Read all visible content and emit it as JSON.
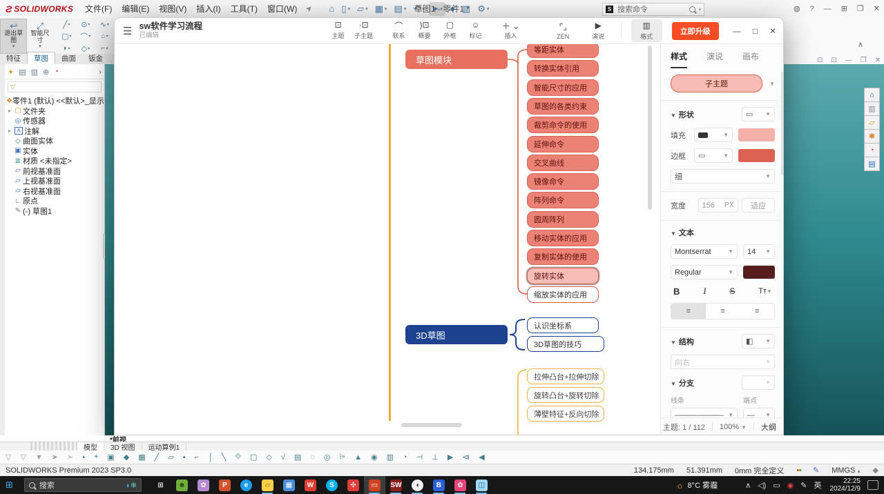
{
  "colors": {
    "parent_fill": "#E8705F",
    "child_fill": "#EC8175",
    "child_border": "#D86455",
    "child_text": "#5F150D",
    "selected_fill": "#F7BDB6",
    "outline_border": "#D85A48",
    "blue": "#1D4390",
    "yellow": "#EFB343",
    "trunk": "#F2A93B",
    "upgrade": "#F64E22",
    "maroon_swatch": "#571E1E",
    "fill_swatch": "#F5B1A9",
    "border_swatch": "#DA6351",
    "branch_swatch": "#E2674F",
    "preview_fill": "#F7BCB4"
  },
  "sw": {
    "logo_mark": "Ƨ",
    "logo_text": "SOLIDWORKS",
    "menus": [
      "文件(F)",
      "编辑(E)",
      "视图(V)",
      "插入(I)",
      "工具(T)",
      "窗口(W)"
    ],
    "pin_icon": "➤",
    "quick_icons": [
      {
        "name": "home-icon",
        "g": "⌂"
      },
      {
        "name": "new-doc-icon",
        "g": "▯",
        "chev": true
      },
      {
        "name": "open-icon",
        "g": "▱",
        "chev": true
      },
      {
        "name": "save-icon",
        "g": "▦",
        "chev": true
      },
      {
        "name": "print-icon",
        "g": "▤",
        "chev": true
      },
      {
        "name": "undo-icon",
        "g": "↶",
        "chev": true
      },
      {
        "name": "select-cursor-icon",
        "g": "➤",
        "chev": true,
        "active": true
      },
      {
        "name": "traffic-light-icon",
        "g": "●"
      },
      {
        "name": "table-icon",
        "g": "▥"
      },
      {
        "name": "settings-gear-icon",
        "g": "⚙",
        "chev": true
      }
    ],
    "doc_title": "草图1 - 零件1 *",
    "search_placeholder": "搜索命令",
    "right_icons": [
      {
        "name": "user-icon",
        "g": "◍"
      },
      {
        "name": "help-icon",
        "g": "?"
      },
      {
        "name": "minimize-icon",
        "g": "—"
      },
      {
        "name": "collapse-icon",
        "g": "⊞"
      },
      {
        "name": "restore-icon",
        "g": "❐"
      },
      {
        "name": "close-icon",
        "g": "✕"
      }
    ],
    "ribbon": {
      "exit_sketch": "退出草图",
      "smart_dim": "智能尺寸",
      "sketch_icons": [
        "╱",
        "⊙",
        "∿",
        "▢",
        "⌒",
        "○",
        "◗",
        "◇",
        "⌐"
      ],
      "tabs": [
        "特征",
        "草图",
        "曲面",
        "钣金"
      ],
      "active_tab": "草图"
    },
    "feature_tabs": [
      {
        "name": "featuremanager-tab-icon",
        "g": "✦",
        "c": "#c9a227"
      },
      {
        "name": "propertymanager-tab-icon",
        "g": "▤",
        "c": "#6f7f8c"
      },
      {
        "name": "configuration-tab-icon",
        "g": "▥",
        "c": "#6f7f8c"
      },
      {
        "name": "dimxpert-tab-icon",
        "g": "⊕",
        "c": "#6f7f8c"
      },
      {
        "name": "appearance-tab-icon",
        "g": "◔",
        "c": "#b5452f"
      }
    ],
    "tree": {
      "root": "零件1 (默认) <<默认>_显示状态 1>",
      "root_icon": "❖",
      "items": [
        {
          "icon": "folder-icon",
          "g": "▢",
          "c": "#c9a227",
          "exp": true,
          "label": "文件夹"
        },
        {
          "icon": "sensors-icon",
          "g": "◎",
          "c": "#3d6fb4",
          "exp": false,
          "label": "传感器"
        },
        {
          "icon": "annotations-icon",
          "g": "A",
          "c": "#3d6fb4",
          "exp": true,
          "label": "注解"
        },
        {
          "icon": "surface-bodies-icon",
          "g": "◇",
          "c": "#2f8b8f",
          "exp": false,
          "label": "曲面实体"
        },
        {
          "icon": "solid-bodies-icon",
          "g": "▣",
          "c": "#3d6fb4",
          "exp": false,
          "label": "实体"
        },
        {
          "icon": "material-icon",
          "g": "≣",
          "c": "#2f8b8f",
          "exp": false,
          "label": "材质 <未指定>"
        },
        {
          "icon": "plane-icon",
          "g": "▱",
          "c": "#3d6fb4",
          "exp": false,
          "label": "前视基准面"
        },
        {
          "icon": "plane-icon",
          "g": "▱",
          "c": "#3d6fb4",
          "exp": false,
          "label": "上视基准面"
        },
        {
          "icon": "plane-icon",
          "g": "▱",
          "c": "#3d6fb4",
          "exp": false,
          "label": "右视基准面"
        },
        {
          "icon": "origin-icon",
          "g": "∟",
          "c": "#3d6fb4",
          "exp": false,
          "label": "原点"
        },
        {
          "icon": "sketch-icon",
          "g": "✎",
          "c": "#777777",
          "exp": false,
          "label": "(-) 草图1"
        }
      ]
    },
    "taskpane_icons": [
      {
        "name": "home-icon",
        "g": "⌂",
        "c": "#1a6fbd"
      },
      {
        "name": "resources-icon",
        "g": "▥",
        "c": "#8a8a8a"
      },
      {
        "name": "design-library-icon",
        "g": "▱",
        "c": "#c9a227"
      },
      {
        "name": "toolbox-icon",
        "g": "✱",
        "c": "#d9822b"
      },
      {
        "name": "appearances-icon",
        "g": "◔",
        "c": "#cc3333"
      },
      {
        "name": "custom-properties-icon",
        "g": "▤",
        "c": "#2e6fbd"
      }
    ],
    "doc_window_icons": [
      {
        "name": "doc-prev-icon",
        "g": "⊡"
      },
      {
        "name": "doc-next-icon",
        "g": "⊡"
      },
      {
        "name": "doc-minimize-icon",
        "g": "—"
      },
      {
        "name": "doc-restore-icon",
        "g": "❐"
      },
      {
        "name": "doc-close-icon",
        "g": "✕"
      }
    ],
    "collapse_chevron": "∧",
    "view_label": "*前视",
    "model_tabs": [
      "模型",
      "3D 视图",
      "运动算例1"
    ],
    "active_model_tab": "模型",
    "view_toolbar_icons": [
      "▽",
      "▽",
      "▼",
      "➤",
      "➣",
      "•",
      "⌖",
      "▣",
      "◆",
      "▦",
      "╱",
      "▱",
      "▪",
      "⌐",
      "⌠",
      "╲",
      "⟐",
      "▢",
      "◇",
      "√",
      "▤",
      "◌",
      "◎",
      "⌲",
      "▲",
      "◉",
      "▥",
      "◔",
      "⊣",
      "⊥",
      "▶",
      "⧏",
      "◀"
    ],
    "status": {
      "product": "SOLIDWORKS Premium 2023 SP3.0",
      "x": "134.175mm",
      "y": "51.391mm",
      "z": "0mm",
      "state": "完全定义",
      "units": "MMGS",
      "units_chev": "▴",
      "gem_icon": "◆"
    }
  },
  "mindmap": {
    "title": "sw软件学习流程",
    "subtitle": "已编辑",
    "burger_icon": "☰",
    "toolbar": [
      {
        "name": "topic-button",
        "g": "⊡",
        "label": "主题"
      },
      {
        "name": "subtopic-button",
        "g": "·⊡",
        "label": "子主题"
      },
      {
        "name": "relationship-button",
        "g": "⌒",
        "label": "联系",
        "gap": true
      },
      {
        "name": "summary-button",
        "g": ")⊡",
        "label": "概要"
      },
      {
        "name": "boundary-button",
        "g": "▢",
        "label": "外框"
      },
      {
        "name": "marker-button",
        "g": "☺",
        "label": "标记"
      },
      {
        "name": "insert-button",
        "g": "＋",
        "label": "插入",
        "chev": true,
        "gap": true
      }
    ],
    "zen": {
      "g": "⌜⌟",
      "label": "ZEN"
    },
    "present": {
      "g": "▶",
      "label": "演说"
    },
    "format_btn": {
      "g": "▥",
      "label": "格式"
    },
    "upgrade_label": "立即升级",
    "win_icons": [
      {
        "name": "mm-minimize-icon",
        "g": "—"
      },
      {
        "name": "mm-maximize-icon",
        "g": "□"
      },
      {
        "name": "mm-close-icon",
        "g": "✕"
      }
    ],
    "nodes": {
      "sketch_module": {
        "label": "草图模块",
        "children": [
          {
            "label": "等距实体",
            "style": "filled"
          },
          {
            "label": "转换实体引用",
            "style": "filled"
          },
          {
            "label": "智能尺寸的应用",
            "style": "filled"
          },
          {
            "label": "草图的各类约束",
            "style": "filled"
          },
          {
            "label": "裁剪命令的使用",
            "style": "filled"
          },
          {
            "label": "延伸命令",
            "style": "filled"
          },
          {
            "label": "交叉曲线",
            "style": "filled"
          },
          {
            "label": "镜像命令",
            "style": "filled"
          },
          {
            "label": "阵列命令",
            "style": "filled"
          },
          {
            "label": "圆周阵列",
            "style": "filled"
          },
          {
            "label": "移动实体的应用",
            "style": "filled"
          },
          {
            "label": "复制实体的使用",
            "style": "filled"
          },
          {
            "label": "旋转实体",
            "style": "selected"
          },
          {
            "label": "缩放实体的应用",
            "style": "outline"
          }
        ]
      },
      "sketch3d": {
        "label": "3D草图",
        "children": [
          "认识坐标系",
          "3D草图的技巧"
        ]
      },
      "features": [
        "拉伸凸台+拉伸切除",
        "旋转凸台+旋转切除",
        "薄壁特征+反向切除"
      ]
    },
    "panel": {
      "tabs": [
        "样式",
        "演说",
        "画布"
      ],
      "active_tab": "样式",
      "preview_label": "子主题",
      "shape_section": "形状",
      "fill_label": "填充",
      "border_label": "边框",
      "thin_label": "细",
      "width_label": "宽度",
      "width_value": "156",
      "width_unit": "PX",
      "fit_label": "适应",
      "text_section": "文本",
      "font_name": "Montserrat",
      "font_size": "14",
      "font_weight": "Regular",
      "bold": "B",
      "italic": "I",
      "strike": "S",
      "tt": "Tт",
      "structure_section": "结构",
      "direction": "向右",
      "branch_section": "分支",
      "line_label": "线条",
      "endpoint_label": "端点",
      "footer": {
        "topic_counter": "主题: 1 / 112",
        "zoom": "100%",
        "outline": "大纲"
      }
    }
  },
  "taskbar": {
    "search_label": "搜索",
    "search_widgets": [
      {
        "name": "news-widget-icon",
        "g": "◗",
        "c": "#3ea6f0"
      },
      {
        "name": "weather-widget-icon",
        "g": "❄",
        "c": "#5bc8c8"
      }
    ],
    "apps": [
      {
        "name": "task-view-button",
        "g": "⊞",
        "bg": "transparent",
        "fg": "#e8e8e8",
        "run": false
      },
      {
        "name": "green-app",
        "g": "☻",
        "bg": "#6fae3d",
        "fg": "#2b4d12",
        "run": false
      },
      {
        "name": "paint-app",
        "g": "✿",
        "bg": "#b98ad4",
        "fg": "#fff",
        "run": false
      },
      {
        "name": "office-app",
        "g": "P",
        "bg": "#d35230",
        "fg": "#fff",
        "run": false
      },
      {
        "name": "edge-browser",
        "g": "e",
        "bg": "#1b9cf0",
        "fg": "#fff",
        "round": true,
        "run": false
      },
      {
        "name": "file-explorer",
        "g": "▱",
        "bg": "#ffd04a",
        "fg": "#9c7a12",
        "run": true
      },
      {
        "name": "calculator-app",
        "g": "▦",
        "bg": "#4a90d9",
        "fg": "#fff",
        "run": false
      },
      {
        "name": "wps-office",
        "g": "W",
        "bg": "#e03c31",
        "fg": "#fff",
        "run": false
      },
      {
        "name": "skype-app",
        "g": "S",
        "bg": "#00aff0",
        "fg": "#fff",
        "round": true,
        "run": false
      },
      {
        "name": "red-app",
        "g": "✣",
        "bg": "#e23c39",
        "fg": "#fff",
        "run": false
      },
      {
        "name": "mindmap-app",
        "g": "▭",
        "bg": "#d04423",
        "fg": "#fff",
        "run": true,
        "active": true
      },
      {
        "name": "solidworks-2023",
        "g": "SW",
        "bg": "#8b1d1d",
        "fg": "#fff",
        "run": true
      },
      {
        "name": "qq-app",
        "g": "◖",
        "bg": "#f4f4f4",
        "fg": "#111",
        "round": true,
        "run": true
      },
      {
        "name": "blue-doc-app",
        "g": "B",
        "bg": "#2b5fd9",
        "fg": "#fff",
        "run": true
      },
      {
        "name": "colored-app",
        "g": "✿",
        "bg": "#e8437a",
        "fg": "#fff",
        "run": true
      },
      {
        "name": "modeling-app",
        "g": "◫",
        "bg": "#9fd8f5",
        "fg": "#23608a",
        "run": true
      }
    ],
    "weather": {
      "icon": "☼",
      "text": "8°C 雾霾"
    },
    "tray": [
      {
        "name": "tray-chevron-icon",
        "g": "∧"
      },
      {
        "name": "volume-icon",
        "g": "◁)"
      },
      {
        "name": "display-icon",
        "g": "▭"
      },
      {
        "name": "record-icon",
        "g": "◉",
        "red": true
      },
      {
        "name": "pen-icon",
        "g": "✎"
      },
      {
        "name": "ime-indicator",
        "g": "英"
      }
    ],
    "time": "22:25",
    "date": "2024/12/9"
  }
}
